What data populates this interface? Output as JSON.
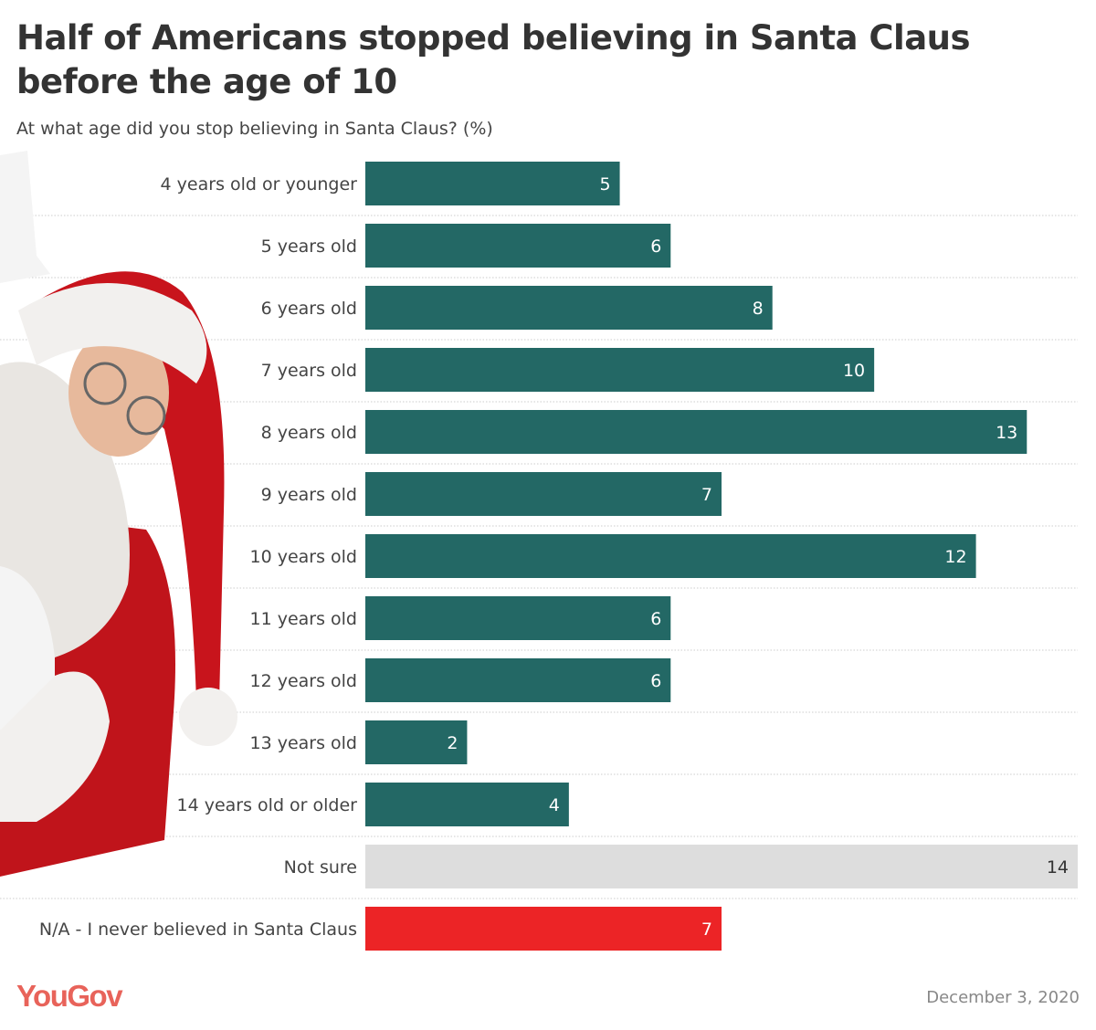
{
  "chart_data": {
    "type": "bar",
    "orientation": "horizontal",
    "title": "Half of Americans stopped believing in Santa Claus before the age of 10",
    "subtitle": "At what age did you stop believing in Santa Claus? (%)",
    "categories": [
      "4 years old or younger",
      "5 years old",
      "6 years old",
      "7 years old",
      "8 years old",
      "9 years old",
      "10 years old",
      "11 years old",
      "12 years old",
      "13 years old",
      "14 years old or older",
      "Not sure",
      "N/A - I never believed in Santa Claus"
    ],
    "values": [
      5,
      6,
      8,
      10,
      13,
      7,
      12,
      6,
      6,
      2,
      4,
      14,
      7
    ],
    "colors": [
      "#236865",
      "#236865",
      "#236865",
      "#236865",
      "#236865",
      "#236865",
      "#236865",
      "#236865",
      "#236865",
      "#236865",
      "#236865",
      "#dddddd",
      "#ec2426"
    ],
    "label_colors": [
      "#ffffff",
      "#ffffff",
      "#ffffff",
      "#ffffff",
      "#ffffff",
      "#ffffff",
      "#ffffff",
      "#ffffff",
      "#ffffff",
      "#ffffff",
      "#ffffff",
      "#333333",
      "#ffffff"
    ],
    "xlim": [
      0,
      14
    ],
    "grid": false,
    "data_labels": true
  },
  "footer": {
    "logo": "YouGov",
    "date": "December 3, 2020"
  },
  "illustration": "santa-claus"
}
